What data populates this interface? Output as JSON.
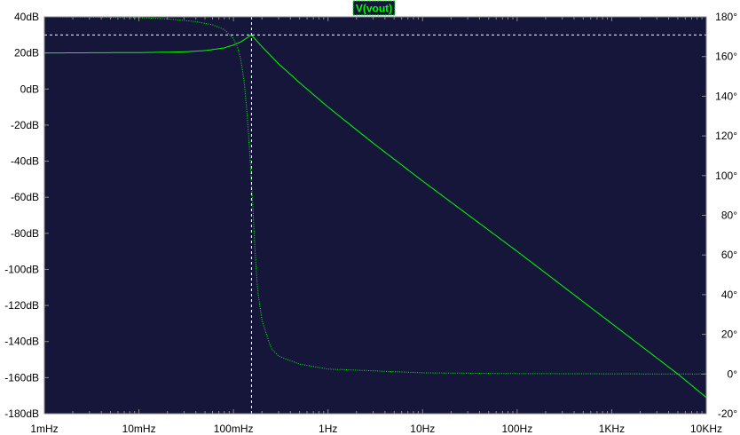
{
  "colors": {
    "plot_background": "#15163a",
    "grid": "#8a8a8a",
    "trace": "#00ff00",
    "cursor": "#ffffff",
    "text": "#000000"
  },
  "chart_data": {
    "type": "line",
    "title": "",
    "legend": {
      "label": "V(vout)",
      "placement": "top-center"
    },
    "grid": false,
    "x_axis": {
      "scale": "log",
      "range": [
        0.001,
        10000
      ],
      "tick_values": [
        0.001,
        0.01,
        0.1,
        1,
        10,
        100,
        1000,
        10000
      ],
      "tick_labels": [
        "1mHz",
        "10mHz",
        "100mHz",
        "1Hz",
        "10Hz",
        "100Hz",
        "1KHz",
        "10KHz"
      ]
    },
    "y_left": {
      "quantity": "magnitude",
      "range": [
        -180,
        40
      ],
      "tick_values": [
        40,
        20,
        0,
        -20,
        -40,
        -60,
        -80,
        -100,
        -120,
        -140,
        -160,
        -180
      ],
      "tick_labels": [
        "40dB",
        "20dB",
        "0dB",
        "-20dB",
        "-40dB",
        "-60dB",
        "-80dB",
        "-100dB",
        "-120dB",
        "-140dB",
        "-160dB",
        "-180dB"
      ]
    },
    "y_right": {
      "quantity": "phase",
      "range": [
        -20,
        180
      ],
      "tick_values": [
        180,
        160,
        140,
        120,
        100,
        80,
        60,
        40,
        20,
        0,
        -20
      ],
      "tick_labels": [
        "180°",
        "160°",
        "140°",
        "120°",
        "100°",
        "80°",
        "60°",
        "40°",
        "20°",
        "0°",
        "-20°"
      ]
    },
    "series": [
      {
        "axis": "left",
        "style": "solid",
        "x": [
          0.001,
          0.01,
          0.03,
          0.05,
          0.08,
          0.1,
          0.12,
          0.14,
          0.155,
          0.17,
          0.2,
          0.3,
          0.5,
          1,
          3,
          10,
          100,
          1000,
          5000,
          10000
        ],
        "y": [
          20,
          20.2,
          20.6,
          21.3,
          22.8,
          24.4,
          26.2,
          28.5,
          30,
          27.6,
          23.5,
          14,
          3.5,
          -10,
          -30,
          -51,
          -90,
          -130,
          -158,
          -171
        ]
      },
      {
        "axis": "right",
        "style": "dotted",
        "x": [
          0.001,
          0.01,
          0.02,
          0.04,
          0.06,
          0.08,
          0.1,
          0.11,
          0.12,
          0.13,
          0.14,
          0.15,
          0.16,
          0.17,
          0.18,
          0.2,
          0.25,
          0.3,
          0.5,
          1,
          10,
          100,
          1000,
          10000
        ],
        "y": [
          180,
          179.6,
          179,
          177.6,
          176,
          173.6,
          169,
          165,
          158,
          147,
          130,
          108,
          85,
          60,
          42,
          27,
          13,
          9,
          5,
          2.5,
          0.6,
          0.2,
          0.1,
          0
        ]
      }
    ],
    "cursor": {
      "x": 0.155,
      "y": 30
    }
  }
}
